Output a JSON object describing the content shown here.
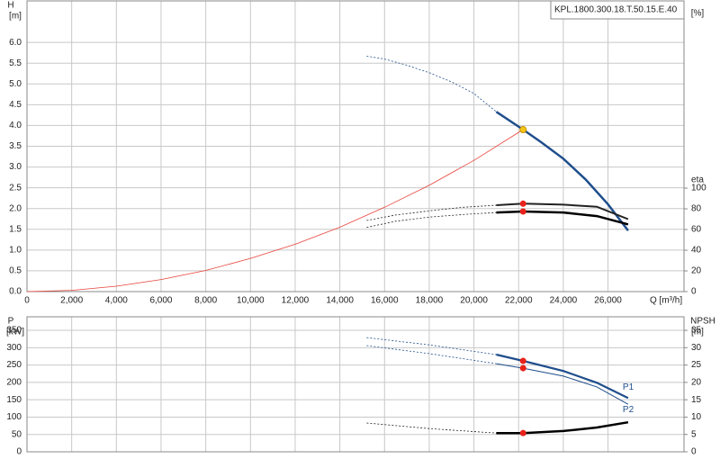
{
  "chart_data": [
    {
      "type": "line",
      "annotation": "KPL.1800.300.18.T.50.15.E.40",
      "ylabel": "H",
      "yunit": "[m]",
      "y2label": "eta",
      "y2unit": "[%]",
      "xlabel": "Q [m³/h]",
      "xlim": [
        0,
        29400
      ],
      "xticks": [
        0,
        {
          "value": 2000,
          "label": "2,000"
        },
        {
          "value": 4000,
          "label": "4,000"
        },
        {
          "value": 6000,
          "label": "6,000"
        },
        {
          "value": 8000,
          "label": "8,000"
        },
        {
          "value": 10000,
          "label": "10,000"
        },
        {
          "value": 12000,
          "label": "12,000"
        },
        {
          "value": 14000,
          "label": "14,000"
        },
        {
          "value": 16000,
          "label": "16,000"
        },
        {
          "value": 18000,
          "label": "18,000"
        },
        {
          "value": 20000,
          "label": "20,000"
        },
        {
          "value": 22000,
          "label": "22,000"
        },
        {
          "value": 24000,
          "label": "24,000"
        },
        {
          "value": 26000,
          "label": "26,000"
        }
      ],
      "ylim": [
        0,
        7
      ],
      "yticks": [
        {
          "value": 0,
          "label": "0.0"
        },
        0.5,
        {
          "value": 1,
          "label": "1.0"
        },
        1.5,
        {
          "value": 2,
          "label": "2.0"
        },
        2.5,
        {
          "value": 3,
          "label": "3.0"
        },
        3.5,
        {
          "value": 4,
          "label": "4.0"
        },
        4.5,
        {
          "value": 5,
          "label": "5.0"
        },
        5.5,
        {
          "value": 6,
          "label": "6.0"
        }
      ],
      "y2lim": [
        0,
        281
      ],
      "y2ticks": [
        0,
        20,
        40,
        60,
        80,
        100
      ],
      "grid": true,
      "series": [
        {
          "color": "#e8423a",
          "width": 0.8,
          "dashed": false,
          "x": [
            0,
            2000,
            4000,
            6000,
            8000,
            10000,
            12000,
            14000,
            16000,
            18000,
            20000,
            22200
          ],
          "values": [
            0,
            0.03,
            0.13,
            0.29,
            0.51,
            0.8,
            1.14,
            1.55,
            2.03,
            2.56,
            3.16,
            3.9
          ]
        },
        {
          "color": "#1f4e8c",
          "width": 0.8,
          "dashed": true,
          "x": [
            15200,
            16000,
            17000,
            18000,
            19000,
            20000,
            21000
          ],
          "values": [
            5.67,
            5.6,
            5.45,
            5.27,
            5.05,
            4.77,
            4.33
          ]
        },
        {
          "color": "#1f4e8c",
          "width": 2.5,
          "dashed": false,
          "x": [
            21000,
            22200,
            23000,
            24000,
            25000,
            26000,
            26900
          ],
          "values": [
            4.33,
            3.9,
            3.6,
            3.2,
            2.7,
            2.1,
            1.47
          ]
        },
        {
          "color": "#222222",
          "width": 0.8,
          "dashed": true,
          "axis": "y2",
          "x": [
            15200,
            16500,
            18000,
            19500,
            21000
          ],
          "values": [
            68.7,
            74,
            78,
            81.5,
            83.5
          ]
        },
        {
          "color": "#222222",
          "width": 2,
          "dashed": false,
          "axis": "y2",
          "x": [
            21000,
            22200,
            24000,
            25500,
            26900
          ],
          "values": [
            83.5,
            85,
            84,
            82,
            70
          ]
        },
        {
          "color": "#222222",
          "width": 0.8,
          "dashed": true,
          "axis": "y2",
          "x": [
            15200,
            16500,
            18000,
            19500,
            21000
          ],
          "values": [
            62,
            68,
            72,
            74.5,
            76.5
          ]
        },
        {
          "color": "#000000",
          "width": 2.5,
          "dashed": false,
          "axis": "y2",
          "x": [
            21000,
            22200,
            24000,
            25500,
            26900
          ],
          "values": [
            76.5,
            77.4,
            76.5,
            73,
            65
          ]
        },
        {
          "color": "#f5c518",
          "style": "point",
          "x": [
            22200
          ],
          "values": [
            3.9
          ]
        },
        {
          "color": "#e8221a",
          "style": "point",
          "axis": "y2",
          "x": [
            22200,
            22200
          ],
          "values": [
            85,
            77.4
          ]
        }
      ]
    },
    {
      "type": "line",
      "ylabel": "P",
      "yunit": "[kW]",
      "y2label": "NPSH",
      "y2unit": "[m]",
      "xlim": [
        0,
        29400
      ],
      "xticks": [
        0,
        2000,
        4000,
        6000,
        8000,
        10000,
        12000,
        14000,
        16000,
        18000,
        20000,
        22000,
        24000,
        26000
      ],
      "xticklabels": false,
      "ylim": [
        0,
        389
      ],
      "yticks": [
        0,
        50,
        100,
        150,
        200,
        250,
        300,
        350
      ],
      "y2lim": [
        0,
        38.9
      ],
      "y2ticks": [
        0,
        5,
        10,
        15,
        20,
        25,
        30,
        35
      ],
      "grid": true,
      "series": [
        {
          "color": "#1f4e8c",
          "width": 0.8,
          "dashed": true,
          "x": [
            15200,
            18000,
            21000
          ],
          "values": [
            329,
            308,
            280
          ]
        },
        {
          "name": "P1",
          "color": "#1f4e8c",
          "width": 2.2,
          "dashed": false,
          "x": [
            21000,
            22200,
            24000,
            25500,
            26900
          ],
          "values": [
            280,
            262,
            233,
            199,
            155
          ]
        },
        {
          "color": "#1f4e8c",
          "width": 0.8,
          "dashed": true,
          "x": [
            15200,
            18000,
            21000
          ],
          "values": [
            306,
            283,
            254
          ]
        },
        {
          "name": "P2",
          "color": "#1f4e8c",
          "width": 1,
          "dashed": false,
          "x": [
            21000,
            22200,
            24000,
            25500,
            26900
          ],
          "values": [
            254,
            241,
            218,
            187,
            137
          ]
        },
        {
          "color": "#222222",
          "width": 0.8,
          "dashed": true,
          "axis": "y2",
          "x": [
            15200,
            18000,
            21000
          ],
          "values": [
            8.3,
            6.7,
            5.4
          ]
        },
        {
          "color": "#000000",
          "width": 2.5,
          "dashed": false,
          "axis": "y2",
          "x": [
            21000,
            22200,
            24000,
            25500,
            26900
          ],
          "values": [
            5.4,
            5.4,
            6,
            7,
            8.5
          ]
        },
        {
          "color": "#e8221a",
          "style": "point",
          "x": [
            22200,
            22200
          ],
          "values": [
            262,
            241
          ]
        },
        {
          "color": "#e8221a",
          "style": "point",
          "axis": "y2",
          "x": [
            22200
          ],
          "values": [
            5.4
          ]
        }
      ]
    }
  ]
}
